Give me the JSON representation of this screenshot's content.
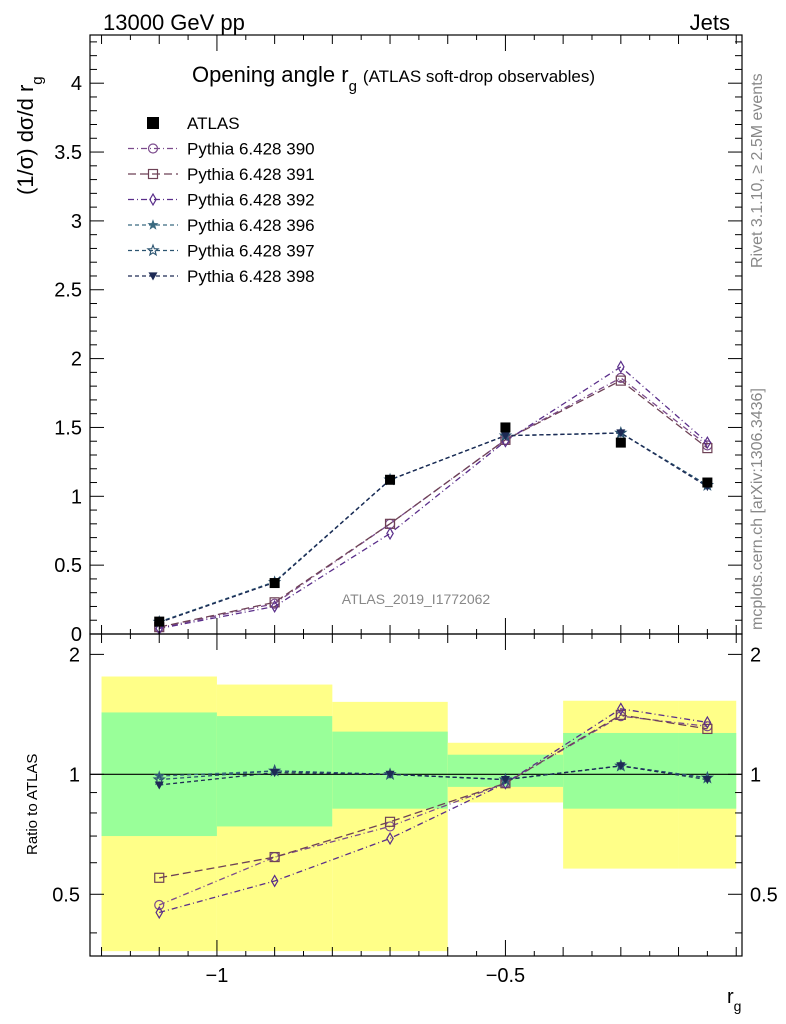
{
  "header": {
    "left": "13000 GeV pp",
    "right": "Jets"
  },
  "side_labels": {
    "rivet": "Rivet 3.1.10, ≥ 2.5M events",
    "mcplots": "mcplots.cern.ch [arXiv:1306.3436]"
  },
  "chart_data": [
    {
      "type": "line",
      "title": "Opening angle r",
      "title_sub": "g",
      "title_note": "(ATLAS soft-drop observables)",
      "ylabel": "(1/σ) dσ/d r",
      "ylabel_sub": "g",
      "watermark": "ATLAS_2019_I1772062",
      "xlim": [
        -1.22,
        -0.09
      ],
      "ylim": [
        0,
        4.35
      ],
      "yticks": [
        0,
        0.5,
        1,
        1.5,
        2,
        2.5,
        3,
        3.5,
        4
      ],
      "ytick_labels": [
        "0",
        "0.5",
        "1",
        "1.5",
        "2",
        "2.5",
        "3",
        "3.5",
        "4"
      ],
      "x": [
        -1.1,
        -0.9,
        -0.7,
        -0.5,
        -0.3,
        -0.15
      ],
      "data": {
        "name": "ATLAS",
        "values": [
          0.09,
          0.37,
          1.12,
          1.5,
          1.39,
          1.1
        ]
      },
      "series": [
        {
          "name": "Pythia 6.428 390",
          "color": "#7b4a8c",
          "marker": "circle",
          "dash": "6,3,1,3",
          "values": [
            0.045,
            0.22,
            0.8,
            1.41,
            1.86,
            1.37
          ]
        },
        {
          "name": "Pythia 6.428 391",
          "color": "#6e4256",
          "marker": "square",
          "dash": "8,4",
          "values": [
            0.05,
            0.23,
            0.8,
            1.41,
            1.84,
            1.35
          ]
        },
        {
          "name": "Pythia 6.428 392",
          "color": "#5a2e8a",
          "marker": "diamond",
          "dash": "6,3,1,3",
          "values": [
            0.04,
            0.2,
            0.73,
            1.4,
            1.94,
            1.39
          ]
        },
        {
          "name": "Pythia 6.428 396",
          "color": "#3a6a80",
          "marker": "star",
          "dash": "4,3",
          "values": [
            0.088,
            0.38,
            1.12,
            1.44,
            1.46,
            1.08
          ]
        },
        {
          "name": "Pythia 6.428 397",
          "color": "#2c5470",
          "marker": "star-open",
          "dash": "4,3",
          "values": [
            0.087,
            0.375,
            1.12,
            1.44,
            1.46,
            1.08
          ]
        },
        {
          "name": "Pythia 6.428 398",
          "color": "#1e2a55",
          "marker": "triangle-down",
          "dash": "4,3",
          "values": [
            0.083,
            0.375,
            1.12,
            1.44,
            1.46,
            1.07
          ]
        }
      ]
    },
    {
      "type": "line",
      "ylabel": "Ratio to ATLAS",
      "xlabel": "r",
      "xlabel_sub": "g",
      "xlim": [
        -1.22,
        -0.09
      ],
      "ylim": [
        0.35,
        2.25
      ],
      "yticks": [
        0.5,
        1,
        2
      ],
      "ytick_labels": [
        "0.5",
        "1",
        "2"
      ],
      "xticks": [
        -1,
        -0.5
      ],
      "xtick_labels": [
        "−1",
        "−0.5"
      ],
      "x": [
        -1.1,
        -0.9,
        -0.7,
        -0.5,
        -0.3,
        -0.15
      ],
      "bins": [
        [
          -1.2,
          -1.0
        ],
        [
          -1.0,
          -0.8
        ],
        [
          -0.8,
          -0.6
        ],
        [
          -0.6,
          -0.4
        ],
        [
          -0.4,
          -0.2
        ],
        [
          -0.2,
          -0.1
        ]
      ],
      "band_total": [
        [
          0.36,
          1.76
        ],
        [
          0.36,
          1.68
        ],
        [
          0.36,
          1.52
        ],
        [
          0.85,
          1.2
        ],
        [
          0.58,
          1.53
        ],
        [
          0.58,
          1.53
        ]
      ],
      "band_inner": [
        [
          0.7,
          1.43
        ],
        [
          0.74,
          1.4
        ],
        [
          0.82,
          1.28
        ],
        [
          0.93,
          1.12
        ],
        [
          0.82,
          1.27
        ],
        [
          0.82,
          1.27
        ]
      ],
      "series": [
        {
          "name": "Pythia 6.428 390",
          "values": [
            0.47,
            0.62,
            0.74,
            0.95,
            1.4,
            1.32
          ]
        },
        {
          "name": "Pythia 6.428 391",
          "values": [
            0.55,
            0.62,
            0.76,
            0.95,
            1.41,
            1.3
          ]
        },
        {
          "name": "Pythia 6.428 392",
          "values": [
            0.45,
            0.54,
            0.69,
            0.95,
            1.46,
            1.35
          ]
        },
        {
          "name": "Pythia 6.428 396",
          "values": [
            0.99,
            1.02,
            1.0,
            0.97,
            1.05,
            0.98
          ]
        },
        {
          "name": "Pythia 6.428 397",
          "values": [
            0.97,
            1.02,
            1.0,
            0.97,
            1.05,
            0.98
          ]
        },
        {
          "name": "Pythia 6.428 398",
          "values": [
            0.94,
            1.01,
            1.0,
            0.97,
            1.05,
            0.97
          ]
        }
      ]
    }
  ]
}
